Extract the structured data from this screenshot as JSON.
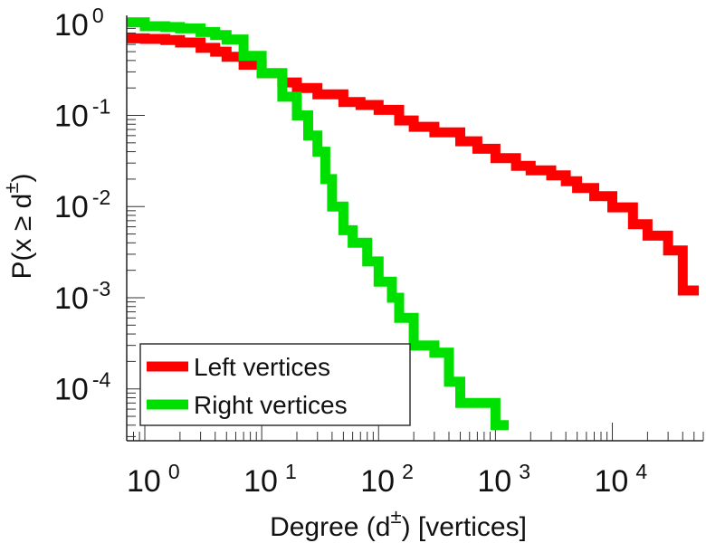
{
  "chart_data": {
    "type": "line",
    "xscale": "log",
    "yscale": "log",
    "xlim": [
      0.7,
      60000
    ],
    "ylim": [
      2.7e-05,
      1.25
    ],
    "grid": false,
    "legend_position": "bottom-left",
    "xlabel": {
      "main": "Degree (d",
      "sup": "±",
      "tail": ") [vertices]"
    },
    "ylabel": {
      "main": "P(x ≥ d",
      "sup": "±",
      "tail": ")"
    },
    "x_ticks": [
      {
        "base": "10",
        "exp": "0",
        "value": 1
      },
      {
        "base": "10",
        "exp": "1",
        "value": 10
      },
      {
        "base": "10",
        "exp": "2",
        "value": 100
      },
      {
        "base": "10",
        "exp": "3",
        "value": 1000
      },
      {
        "base": "10",
        "exp": "4",
        "value": 10000
      }
    ],
    "y_ticks": [
      {
        "base": "10",
        "exp": "0",
        "value": 1
      },
      {
        "base": "10",
        "exp": "-1",
        "value": 0.1
      },
      {
        "base": "10",
        "exp": "-2",
        "value": 0.01
      },
      {
        "base": "10",
        "exp": "-3",
        "value": 0.001
      },
      {
        "base": "10",
        "exp": "-4",
        "value": 0.0001
      }
    ],
    "series": [
      {
        "name": "Left vertices",
        "color": "#ff0000",
        "points": [
          [
            0.7,
            0.7
          ],
          [
            1,
            0.69
          ],
          [
            1.5,
            0.67
          ],
          [
            2,
            0.63
          ],
          [
            3,
            0.55
          ],
          [
            4,
            0.5
          ],
          [
            5,
            0.44
          ],
          [
            7,
            0.36
          ],
          [
            10,
            0.29
          ],
          [
            15,
            0.23
          ],
          [
            20,
            0.2
          ],
          [
            30,
            0.17
          ],
          [
            50,
            0.14
          ],
          [
            70,
            0.13
          ],
          [
            100,
            0.115
          ],
          [
            150,
            0.088
          ],
          [
            200,
            0.075
          ],
          [
            300,
            0.065
          ],
          [
            500,
            0.052
          ],
          [
            700,
            0.043
          ],
          [
            1000,
            0.034
          ],
          [
            1500,
            0.028
          ],
          [
            2000,
            0.025
          ],
          [
            3000,
            0.022
          ],
          [
            4000,
            0.019
          ],
          [
            5000,
            0.016
          ],
          [
            7000,
            0.013
          ],
          [
            10000,
            0.0098
          ],
          [
            15000,
            0.0064
          ],
          [
            20000,
            0.0048
          ],
          [
            30000,
            0.0033
          ],
          [
            40000,
            0.0012
          ],
          [
            55000,
            0.0012
          ]
        ]
      },
      {
        "name": "Right vertices",
        "color": "#00e000",
        "points": [
          [
            0.7,
            1.05
          ],
          [
            1,
            0.95
          ],
          [
            1.5,
            0.93
          ],
          [
            2,
            0.9
          ],
          [
            3,
            0.82
          ],
          [
            4,
            0.76
          ],
          [
            5,
            0.68
          ],
          [
            7,
            0.45
          ],
          [
            10,
            0.29
          ],
          [
            15,
            0.16
          ],
          [
            20,
            0.1
          ],
          [
            25,
            0.06
          ],
          [
            30,
            0.04
          ],
          [
            35,
            0.02
          ],
          [
            40,
            0.01
          ],
          [
            50,
            0.0055
          ],
          [
            60,
            0.004
          ],
          [
            80,
            0.0025
          ],
          [
            100,
            0.0015
          ],
          [
            130,
            0.001
          ],
          [
            150,
            0.0006
          ],
          [
            200,
            0.0003
          ],
          [
            300,
            0.00025
          ],
          [
            400,
            0.00012
          ],
          [
            500,
            7e-05
          ],
          [
            1000,
            4e-05
          ],
          [
            1300,
            4e-05
          ]
        ]
      }
    ]
  }
}
